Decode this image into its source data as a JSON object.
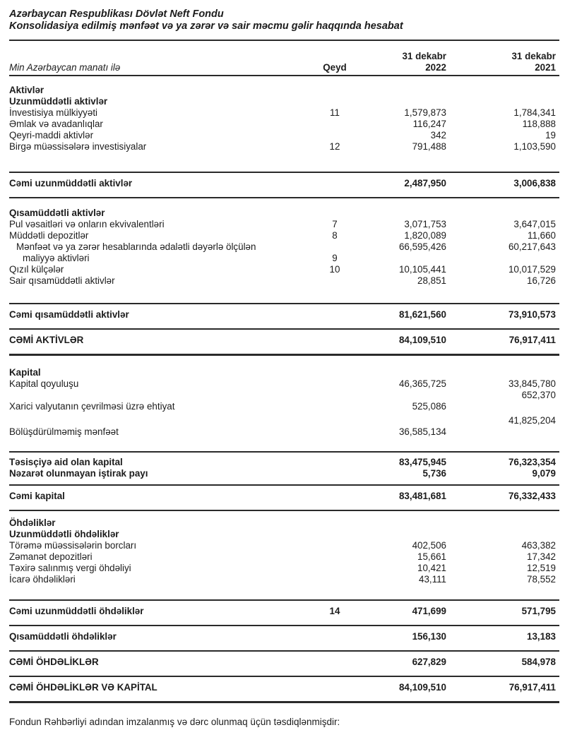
{
  "header": {
    "title1": "Azərbaycan Respublikası Dövlət Neft Fondu",
    "title2": "Konsolidasiya edilmiş mənfəət və ya zərər və sair məcmu gəlir haqqında hesabat"
  },
  "columns": {
    "unit_label": "Min Azərbaycan manatı ilə",
    "note": "Qeyd",
    "date_line": "31 dekabr",
    "year_2022": "2022",
    "year_2021": "2021"
  },
  "rows": [
    {
      "label": "Aktivlər",
      "bold": true,
      "mt": 12
    },
    {
      "label": "Uzunmüddətli aktivlər",
      "bold": true
    },
    {
      "label": "İnvestisiya mülkiyyəti",
      "q": "11",
      "v22": "1,579,873",
      "v21": "1,784,341"
    },
    {
      "label": "Əmlak və avadanlıqlar",
      "v22": "116,247",
      "v21": "118,888"
    },
    {
      "label": "Qeyri-maddi aktivlər",
      "v22": "342",
      "v21": "19"
    },
    {
      "label": "Birgə müəssisələrə investisiyalar",
      "q": "12",
      "v22": "791,488",
      "v21": "1,103,590"
    },
    {
      "rule": true,
      "mt": 27
    },
    {
      "label": "Cəmi uzunmüddətli aktivlər",
      "bold": true,
      "pad": true,
      "v22": "2,487,950",
      "v21": "3,006,838"
    },
    {
      "rule": true
    },
    {
      "label": "Qısamüddətli aktivlər",
      "bold": true,
      "mt": 13
    },
    {
      "label": "Pul vəsaitləri və onların ekvivalentləri",
      "q": "7",
      "v22": "3,071,753",
      "v21": "3,647,015"
    },
    {
      "label": "Müddətli depozitlər",
      "q": "8",
      "v22": "1,820,089",
      "v21": "11,660"
    },
    {
      "label": "Mənfəət və ya zərər hesablarında ədalətli dəyərlə ölçülən",
      "indent": 1,
      "v22": "66,595,426",
      "v21": "60,217,643"
    },
    {
      "label": "maliyyə aktivləri",
      "indent": 2,
      "q": "9"
    },
    {
      "label": "Qızıl külçələr",
      "q": "10",
      "v22": "10,105,441",
      "v21": "10,017,529"
    },
    {
      "label": "Sair qısamüddətli aktivlər",
      "v22": "28,851",
      "v21": "16,726"
    },
    {
      "rule": true,
      "mt": 23
    },
    {
      "label": "Cəmi qısamüddətli aktivlər",
      "bold": true,
      "pad": true,
      "v22": "81,621,560",
      "v21": "73,910,573"
    },
    {
      "rule": true
    },
    {
      "label": "CƏMİ AKTİVLƏR",
      "bold": true,
      "pad": true,
      "v22": "84,109,510",
      "v21": "76,917,411"
    },
    {
      "rule": true,
      "thick": true
    },
    {
      "label": "Kapital",
      "bold": true,
      "mt": 16
    },
    {
      "label": "Kapital qoyuluşu",
      "v22": "46,365,725",
      "v21": "33,845,780"
    },
    {
      "label": "",
      "v21": "652,370"
    },
    {
      "label": "Xarici valyutanın çevrilməsi üzrə ehtiyat",
      "v22": "525,086"
    },
    {
      "label": "",
      "v21": "41,825,204",
      "mt": 4
    },
    {
      "label": "Bölüşdürülməmiş mənfəət",
      "v22": "36,585,134"
    },
    {
      "rule": true,
      "mt": 19
    },
    {
      "label": "Təsisçiyə aid olan kapital",
      "bold": true,
      "mt": 6,
      "v22": "83,475,945",
      "v21": "76,323,354"
    },
    {
      "label": "Nəzarət olunmayan iştirak payı",
      "bold": true,
      "v22": "5,736",
      "v21": "9,079"
    },
    {
      "rule": true,
      "mt": 7
    },
    {
      "label": "Cəmi kapital",
      "bold": true,
      "pad": true,
      "v22": "83,481,681",
      "v21": "76,332,433"
    },
    {
      "rule": true
    },
    {
      "label": "Öhdəliklər",
      "bold": true,
      "mt": 9
    },
    {
      "label": "Uzunmüddətli öhdəliklər",
      "bold": true
    },
    {
      "label": "Törəmə müəssisələrin borcları",
      "v22": "402,506",
      "v21": "463,382"
    },
    {
      "label": "Zəmanət depozitləri",
      "v22": "15,661",
      "v21": "17,342"
    },
    {
      "label": "Təxirə salınmış vergi öhdəliyi",
      "v22": "10,421",
      "v21": "12,519"
    },
    {
      "label": "İcarə öhdəlikləri",
      "v22": "43,111",
      "v21": "78,552"
    },
    {
      "rule": true,
      "mt": 20
    },
    {
      "label": "Cəmi uzunmüddətli öhdəliklər",
      "bold": true,
      "pad": true,
      "q": "14",
      "v22": "471,699",
      "v21": "571,795"
    },
    {
      "rule": true
    },
    {
      "label": "Qısamüddətli öhdəliklər",
      "bold": true,
      "pad": true,
      "v22": "156,130",
      "v21": "13,183"
    },
    {
      "rule": true
    },
    {
      "label": "CƏMİ ÖHDƏLİKLƏR",
      "bold": true,
      "pad": true,
      "v22": "627,829",
      "v21": "584,978"
    },
    {
      "rule": true
    },
    {
      "label": "CƏMİ ÖHDƏLİKLƏR VƏ KAPİTAL",
      "bold": true,
      "pad": true,
      "v22": "84,109,510",
      "v21": "76,917,411"
    },
    {
      "rule": true,
      "thick": true
    }
  ],
  "footer": {
    "text": "Fondun Rəhbərliyi adından imzalanmış və dərc olunmaq üçün təsdiqlənmişdir:"
  }
}
